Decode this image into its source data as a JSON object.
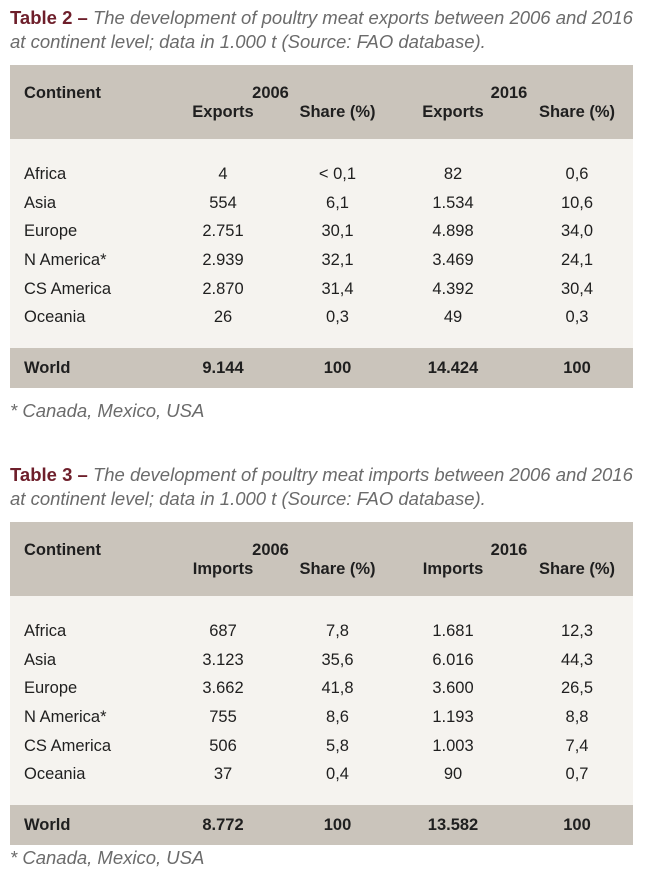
{
  "tables": [
    {
      "label": "Table 2 –",
      "caption": "The development of poultry meat exports between 2006 and 2016 at continent level; data in 1.000 t (Source: FAO database).",
      "continent_header": "Continent",
      "year_a": "2006",
      "year_b": "2016",
      "sub_a1": "Exports",
      "sub_a2": "Share (%)",
      "sub_b1": "Exports",
      "sub_b2": "Share (%)",
      "rows": [
        [
          "Africa",
          "4",
          "< 0,1",
          "82",
          "0,6"
        ],
        [
          "Asia",
          "554",
          "6,1",
          "1.534",
          "10,6"
        ],
        [
          "Europe",
          "2.751",
          "30,1",
          "4.898",
          "34,0"
        ],
        [
          "N America*",
          "2.939",
          "32,1",
          "3.469",
          "24,1"
        ],
        [
          "CS America",
          "2.870",
          "31,4",
          "4.392",
          "30,4"
        ],
        [
          "Oceania",
          "26",
          "0,3",
          "49",
          "0,3"
        ]
      ],
      "total": [
        "World",
        "9.144",
        "100",
        "14.424",
        "100"
      ],
      "footnote": "* Canada, Mexico, USA"
    },
    {
      "label": "Table 3 –",
      "caption": "The development of poultry meat imports between 2006 and 2016 at continent level; data in 1.000 t (Source: FAO database).",
      "continent_header": "Continent",
      "year_a": "2006",
      "year_b": "2016",
      "sub_a1": "Imports",
      "sub_a2": "Share (%)",
      "sub_b1": "Imports",
      "sub_b2": "Share (%)",
      "rows": [
        [
          "Africa",
          "687",
          "7,8",
          "1.681",
          "12,3"
        ],
        [
          "Asia",
          "3.123",
          "35,6",
          "6.016",
          "44,3"
        ],
        [
          "Europe",
          "3.662",
          "41,8",
          "3.600",
          "26,5"
        ],
        [
          "N America*",
          "755",
          "8,6",
          "1.193",
          "8,8"
        ],
        [
          "CS America",
          "506",
          "5,8",
          "1.003",
          "7,4"
        ],
        [
          "Oceania",
          "37",
          "0,4",
          "90",
          "0,7"
        ]
      ],
      "total": [
        "World",
        "8.772",
        "100",
        "13.582",
        "100"
      ],
      "footnote": "* Canada, Mexico, USA"
    }
  ]
}
